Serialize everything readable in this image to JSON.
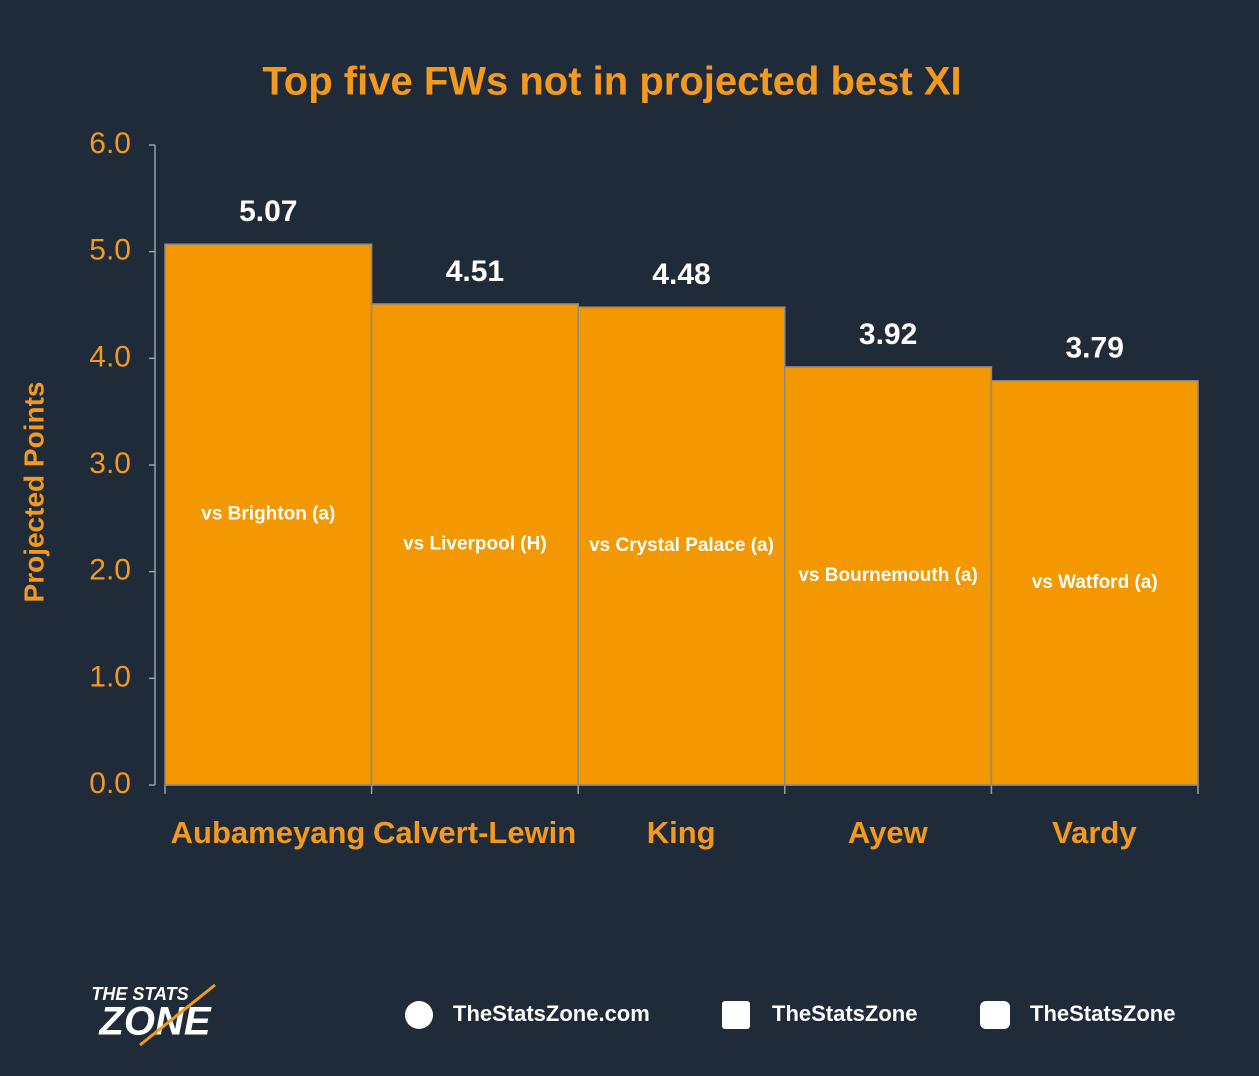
{
  "chart_data": {
    "type": "bar",
    "title": "Top five FWs not in projected best XI",
    "y_label": "Projected Points",
    "categories": [
      "Aubameyang",
      "Calvert-Lewin",
      "King",
      "Ayew",
      "Vardy"
    ],
    "values": [
      5.07,
      4.51,
      4.48,
      3.92,
      3.79
    ],
    "bar_labels": [
      "vs Brighton (a)",
      "vs Liverpool (H)",
      "vs Crystal Palace (a)",
      "vs Bournemouth (a)",
      "vs Watford (a)"
    ],
    "color": "#f39800",
    "ylim": [
      0,
      6
    ],
    "yticks": [
      {
        "value": 0,
        "label": "0.0"
      },
      {
        "value": 1,
        "label": "1.0"
      },
      {
        "value": 2,
        "label": "2.0"
      },
      {
        "value": 3,
        "label": "3.0"
      },
      {
        "value": 4,
        "label": "4.0"
      },
      {
        "value": 5,
        "label": "5.0"
      },
      {
        "value": 6,
        "label": "6.0"
      }
    ],
    "grid": false
  },
  "footer": {
    "logo_top": "THE STATS",
    "logo_main": "ZONE",
    "website": "TheStatsZone.com",
    "facebook": "TheStatsZone",
    "twitter": "TheStatsZone"
  }
}
